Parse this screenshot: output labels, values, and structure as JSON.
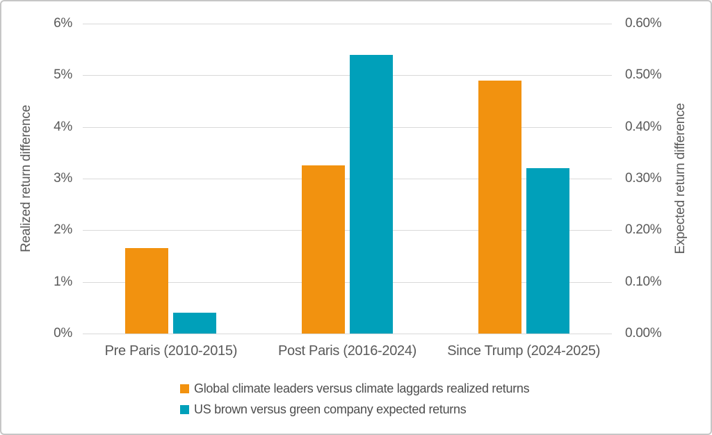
{
  "chart_data": {
    "type": "bar",
    "categories": [
      "Pre Paris (2010-2015)",
      "Post Paris (2016-2024)",
      "Since Trump (2024-2025)"
    ],
    "series": [
      {
        "name": "Global climate leaders versus climate laggards realized returns",
        "axis": "left",
        "color": "#F2920F",
        "values": [
          1.65,
          3.25,
          4.9
        ]
      },
      {
        "name": "US brown versus green company expected returns",
        "axis": "right",
        "color": "#00A0BA",
        "values": [
          0.04,
          0.54,
          0.32
        ]
      }
    ],
    "left_axis": {
      "label": "Realized return difference",
      "min": 0,
      "max": 6,
      "ticks": [
        "0%",
        "1%",
        "2%",
        "3%",
        "4%",
        "5%",
        "6%"
      ]
    },
    "right_axis": {
      "label": "Expected return difference",
      "min": 0,
      "max": 0.6,
      "ticks": [
        "0.00%",
        "0.10%",
        "0.20%",
        "0.30%",
        "0.40%",
        "0.50%",
        "0.60%"
      ]
    },
    "grid": true,
    "grid_color": "#D9D9D9",
    "legend_position": "bottom",
    "text_color": "#595959",
    "border_color": "#C6C6C6"
  }
}
